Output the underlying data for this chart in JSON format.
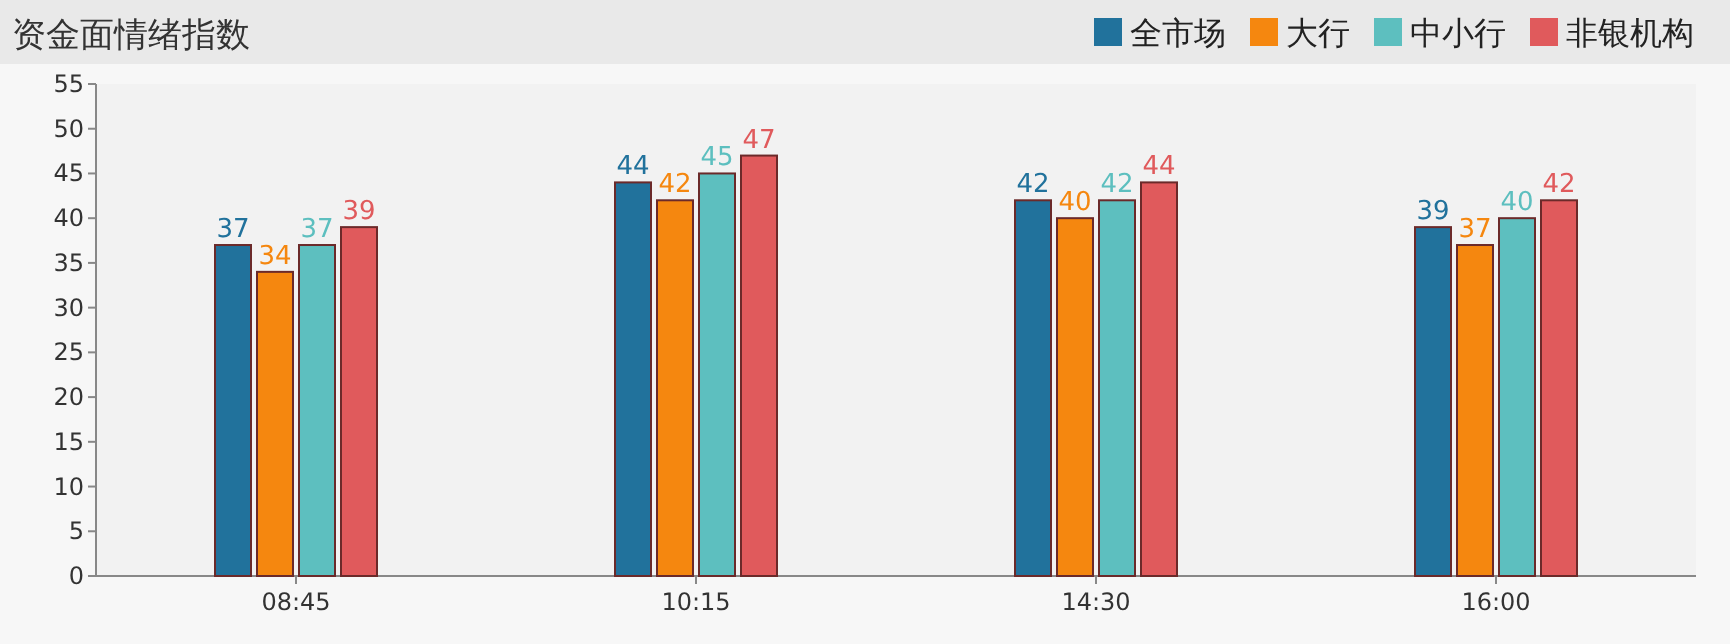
{
  "chart_data": {
    "type": "bar",
    "title": "资金面情绪指数",
    "categories": [
      "08:45",
      "10:15",
      "14:30",
      "16:00"
    ],
    "series": [
      {
        "name": "全市场",
        "color": "#21729c",
        "values": [
          37,
          44,
          42,
          39
        ]
      },
      {
        "name": "大行",
        "color": "#f5870f",
        "values": [
          34,
          42,
          40,
          37
        ]
      },
      {
        "name": "中小行",
        "color": "#5dbfbf",
        "values": [
          37,
          45,
          42,
          40
        ]
      },
      {
        "name": "非银机构",
        "color": "#e05a5c",
        "values": [
          39,
          47,
          44,
          42
        ]
      }
    ],
    "ylim": [
      0,
      55
    ],
    "yticks": [
      0,
      5,
      10,
      15,
      20,
      25,
      30,
      35,
      40,
      45,
      50,
      55
    ],
    "legend": "top right",
    "data_labels": true
  }
}
